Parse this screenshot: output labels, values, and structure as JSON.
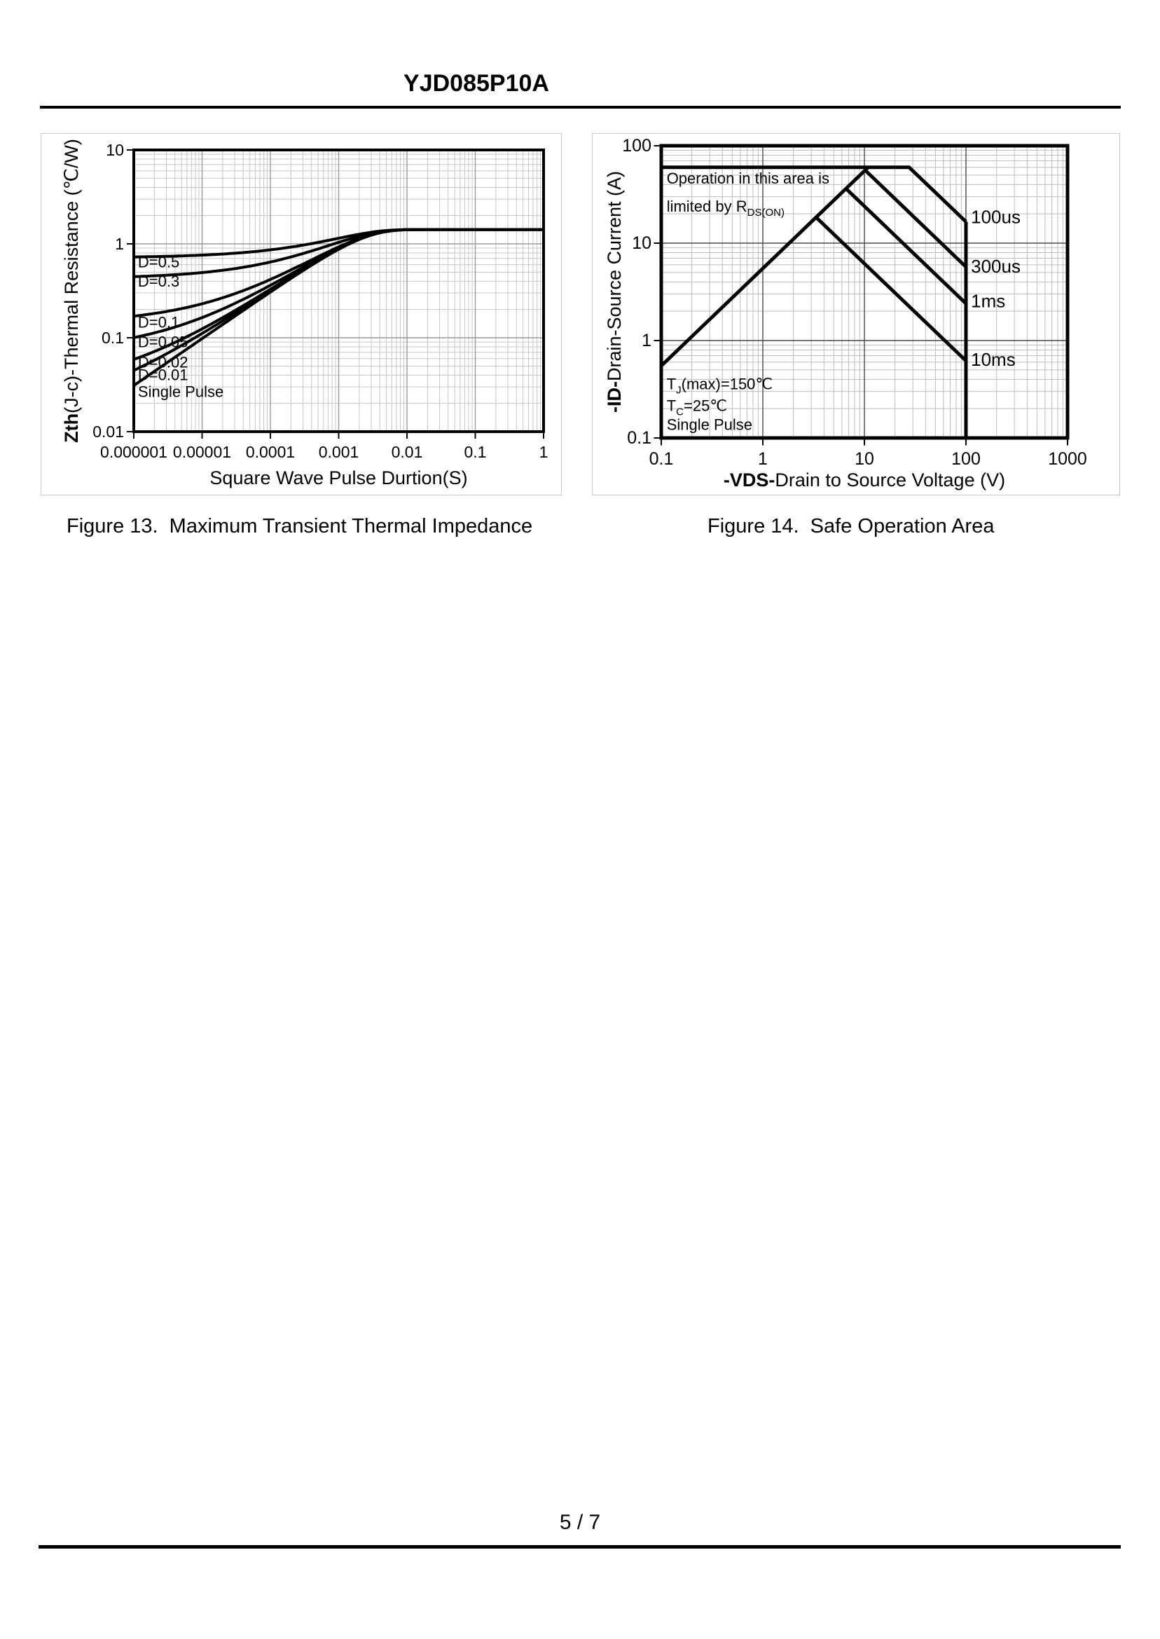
{
  "page": {
    "title": "YJD085P10A",
    "page_number": "5 / 7"
  },
  "figures": {
    "fig13_caption": "Figure 13.  Maximum Transient Thermal Impedance",
    "fig14_caption": "Figure 14.  Safe Operation Area"
  },
  "chart_data": [
    {
      "name": "Maximum Transient Thermal Impedance",
      "type": "line",
      "x_axis": {
        "label_bold": "",
        "label_plain": "Square Wave Pulse Durtion(S)",
        "scale": "log",
        "min": 1e-06,
        "max": 1,
        "ticks": [
          {
            "v": 1e-06,
            "t": "0.000001"
          },
          {
            "v": 1e-05,
            "t": "0.00001"
          },
          {
            "v": 0.0001,
            "t": "0.0001"
          },
          {
            "v": 0.001,
            "t": "0.001"
          },
          {
            "v": 0.01,
            "t": "0.01"
          },
          {
            "v": 0.1,
            "t": "0.1"
          },
          {
            "v": 1,
            "t": "1"
          }
        ]
      },
      "y_axis": {
        "label_bold": "Zth",
        "label_plain": "(J-c)-Thermal Resistance (℃/W)",
        "scale": "log",
        "min": 0.01,
        "max": 10,
        "ticks": [
          {
            "v": 10,
            "t": "10"
          },
          {
            "v": 1,
            "t": "1"
          },
          {
            "v": 0.1,
            "t": "0.1"
          },
          {
            "v": 0.01,
            "t": "0.01"
          }
        ]
      },
      "model": {
        "rth_max_c_per_w": 1.42,
        "tau_s": 0.0021,
        "curves": [
          {
            "label": "D=0.5",
            "duty": 0.5
          },
          {
            "label": "D=0.3",
            "duty": 0.3
          },
          {
            "label": "D=0.1",
            "duty": 0.1
          },
          {
            "label": "D=0.05",
            "duty": 0.05
          },
          {
            "label": "D=0.02",
            "duty": 0.02
          },
          {
            "label": "D=0.01",
            "duty": 0.01
          },
          {
            "label": "Single Pulse",
            "duty": 0
          }
        ]
      },
      "curve_labels": [
        {
          "text": "D=0.5",
          "x": 1.15e-06,
          "y": 0.56
        },
        {
          "text": "D=0.3",
          "x": 1.15e-06,
          "y": 0.35
        },
        {
          "text": "D=0.1",
          "x": 1.15e-06,
          "y": 0.128
        },
        {
          "text": "D=0.05",
          "x": 1.15e-06,
          "y": 0.079
        },
        {
          "text": "D=0.02",
          "x": 1.15e-06,
          "y": 0.048
        },
        {
          "text": "D=0.01",
          "x": 1.15e-06,
          "y": 0.0355
        },
        {
          "text": "Single Pulse",
          "x": 1.15e-06,
          "y": 0.0235
        }
      ],
      "annotations": []
    },
    {
      "name": "Safe Operation Area",
      "type": "line",
      "x_axis": {
        "label_bold": "-VDS-",
        "label_plain": "Drain to Source Voltage (V)",
        "scale": "log",
        "min": 0.1,
        "max": 1000,
        "ticks": [
          {
            "v": 0.1,
            "t": "0.1"
          },
          {
            "v": 1,
            "t": "1"
          },
          {
            "v": 10,
            "t": "10"
          },
          {
            "v": 100,
            "t": "100"
          },
          {
            "v": 1000,
            "t": "1000"
          }
        ]
      },
      "y_axis": {
        "label_bold": "-ID-",
        "label_plain": "Drain-Source Current (A)",
        "scale": "log",
        "min": 0.1,
        "max": 100,
        "ticks": [
          {
            "v": 100,
            "t": "100"
          },
          {
            "v": 10,
            "t": "10"
          },
          {
            "v": 1,
            "t": "1"
          },
          {
            "v": 0.1,
            "t": "0.1"
          }
        ]
      },
      "series": [
        {
          "name": "pulse_100us_boundary",
          "points": [
            [
              0.1,
              60
            ],
            [
              27.6,
              60
            ],
            [
              100,
              16.6
            ]
          ]
        },
        {
          "name": "rds_on_limit",
          "points": [
            [
              0.1,
              0.55
            ],
            [
              10.9,
              60
            ]
          ]
        },
        {
          "name": "pulse_300us",
          "points": [
            [
              10.2,
              56
            ],
            [
              100,
              5.7
            ]
          ]
        },
        {
          "name": "pulse_1ms",
          "points": [
            [
              6.6,
              36.3
            ],
            [
              100,
              2.4
            ]
          ]
        },
        {
          "name": "pulse_10ms",
          "points": [
            [
              3.35,
              18.4
            ],
            [
              100,
              0.62
            ]
          ]
        },
        {
          "name": "vds_limit_100v",
          "points": [
            [
              100,
              16.6
            ],
            [
              100,
              0.1
            ]
          ]
        }
      ],
      "curve_labels": [
        {
          "text": "100us",
          "x": 112,
          "y": 16
        },
        {
          "text": "300us",
          "x": 112,
          "y": 5.0
        },
        {
          "text": "1ms",
          "x": 112,
          "y": 2.2
        },
        {
          "text": "10ms",
          "x": 112,
          "y": 0.55
        }
      ],
      "annotations": [
        {
          "x": 0.113,
          "y": 41,
          "parts": [
            {
              "t": "Operation in this area is"
            }
          ]
        },
        {
          "x": 0.113,
          "y": 21,
          "parts": [
            {
              "t": "limited by R"
            },
            {
              "t": "DS(ON)",
              "sub": true
            }
          ]
        },
        {
          "x": 0.113,
          "y": 0.315,
          "parts": [
            {
              "t": "T"
            },
            {
              "t": "J",
              "sub": true
            },
            {
              "t": "(max)=150℃"
            }
          ]
        },
        {
          "x": 0.113,
          "y": 0.19,
          "parts": [
            {
              "t": "T"
            },
            {
              "t": "C",
              "sub": true
            },
            {
              "t": "=25℃"
            }
          ]
        },
        {
          "x": 0.113,
          "y": 0.1205,
          "parts": [
            {
              "t": "Single Pulse"
            }
          ]
        }
      ]
    }
  ]
}
